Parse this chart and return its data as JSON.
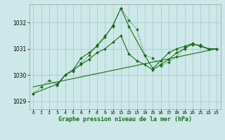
{
  "title": "Graphe pression niveau de la mer (hPa)",
  "background_color": "#cde8e8",
  "grid_color": "#aacccc",
  "line_color": "#1a6e1a",
  "xlim": [
    -0.5,
    23.5
  ],
  "ylim": [
    1028.7,
    1032.7
  ],
  "yticks": [
    1029,
    1030,
    1031,
    1032
  ],
  "xticks": [
    0,
    1,
    2,
    3,
    4,
    5,
    6,
    7,
    8,
    9,
    10,
    11,
    12,
    13,
    14,
    15,
    16,
    17,
    18,
    19,
    20,
    21,
    22,
    23
  ],
  "series": [
    {
      "x": [
        0,
        1,
        2,
        3,
        4,
        5,
        6,
        7,
        8,
        9,
        10,
        11,
        12,
        13,
        14,
        15,
        16,
        17,
        18,
        19,
        20,
        21,
        22,
        23
      ],
      "y": [
        1029.3,
        1029.55,
        1029.8,
        1029.65,
        1030.0,
        1030.15,
        1030.45,
        1030.75,
        1031.15,
        1031.5,
        1031.85,
        1032.55,
        1032.1,
        1031.75,
        1030.75,
        1030.65,
        1030.35,
        1030.5,
        1030.7,
        1031.05,
        1031.15,
        1031.15,
        1031.0,
        1031.0
      ],
      "style": "dotted",
      "marker": "D",
      "markersize": 2.0
    },
    {
      "x": [
        0,
        3,
        4,
        5,
        6,
        7,
        8,
        9,
        10,
        11,
        12,
        14,
        15,
        16,
        17,
        18,
        19,
        20,
        21,
        22,
        23
      ],
      "y": [
        1029.3,
        1029.65,
        1030.0,
        1030.2,
        1030.65,
        1030.85,
        1031.1,
        1031.45,
        1031.9,
        1032.55,
        1031.85,
        1030.75,
        1030.25,
        1030.55,
        1030.85,
        1031.0,
        1031.1,
        1031.2,
        1031.1,
        1031.0,
        1031.0
      ],
      "style": "solid",
      "marker": "D",
      "markersize": 2.0
    },
    {
      "x": [
        3,
        4,
        5,
        6,
        7,
        8,
        9,
        10,
        11,
        12,
        13,
        14,
        15,
        16,
        17,
        18,
        19,
        20,
        21,
        22,
        23
      ],
      "y": [
        1029.6,
        1030.0,
        1030.2,
        1030.4,
        1030.6,
        1030.85,
        1031.0,
        1031.25,
        1031.5,
        1030.8,
        1030.55,
        1030.4,
        1030.2,
        1030.4,
        1030.6,
        1030.85,
        1031.0,
        1031.2,
        1031.1,
        1031.0,
        1031.0
      ],
      "style": "solid",
      "marker": "D",
      "markersize": 2.0
    },
    {
      "x": [
        0,
        23
      ],
      "y": [
        1029.55,
        1031.0
      ],
      "style": "solid",
      "marker": null,
      "markersize": 0
    }
  ]
}
